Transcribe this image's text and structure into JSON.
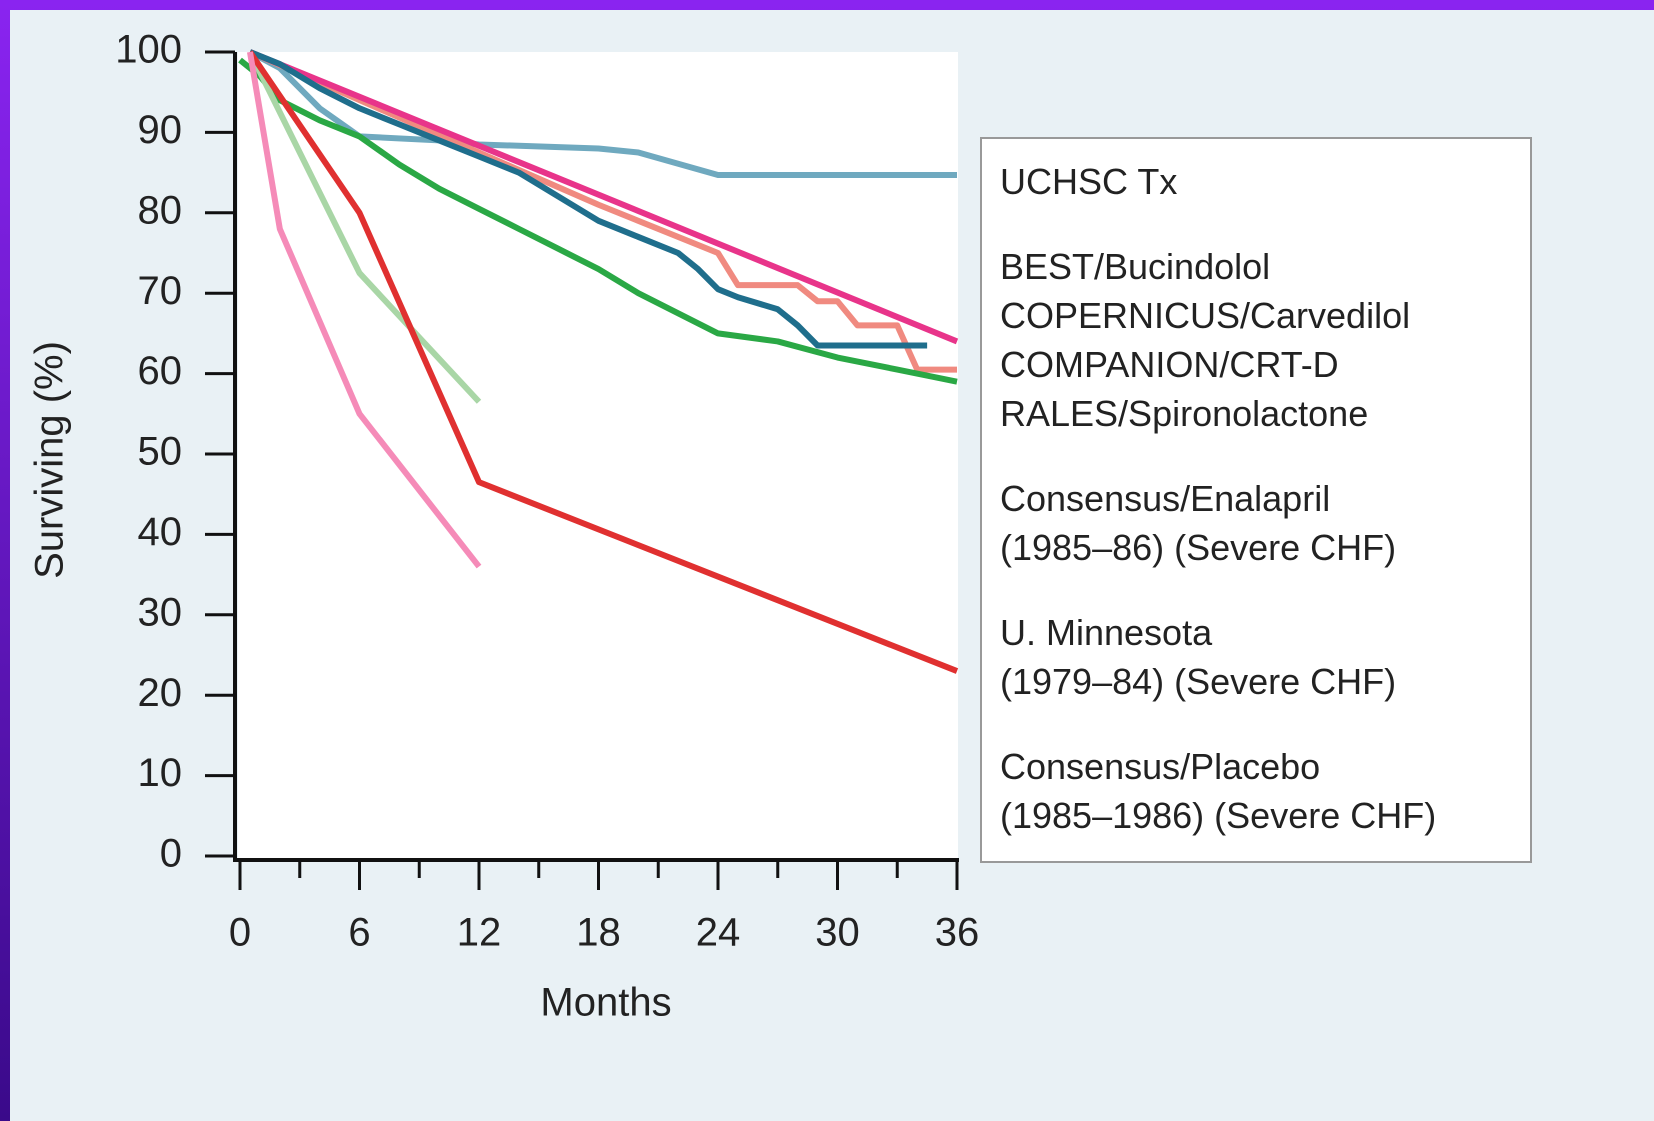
{
  "chart_data": {
    "type": "line",
    "xlabel": "Months",
    "ylabel": "Surviving (%)",
    "xlim": [
      0,
      36
    ],
    "ylim": [
      0,
      100
    ],
    "xticks": [
      0,
      6,
      12,
      18,
      24,
      30,
      36
    ],
    "x_minor_ticks": [
      3,
      9,
      15,
      21,
      27,
      33
    ],
    "yticks": [
      0,
      10,
      20,
      30,
      40,
      50,
      60,
      70,
      80,
      90,
      100
    ],
    "grid": false,
    "legend": "right",
    "series": [
      {
        "name": "UCHSC Tx",
        "color": "#6fa9bf",
        "x": [
          0.5,
          2,
          4,
          6,
          10,
          12,
          18,
          20,
          24,
          36
        ],
        "values": [
          100,
          98,
          93,
          89.5,
          89,
          88.5,
          88,
          87.5,
          84.7,
          84.7
        ]
      },
      {
        "name": "BEST/Bucindolol",
        "color": "#f08a80",
        "x": [
          0.5,
          12,
          18,
          24,
          25,
          28,
          29,
          30,
          31,
          33,
          34,
          36
        ],
        "values": [
          100,
          87.5,
          81,
          75,
          71,
          71,
          69,
          69,
          66,
          66,
          60.5,
          60.5
        ]
      },
      {
        "name": "COPERNICUS/Carvedilol",
        "color": "#e8348a",
        "x": [
          0.5,
          36
        ],
        "values": [
          100,
          64
        ]
      },
      {
        "name": "COMPANION/CRT-D",
        "color": "#1f6e8c",
        "x": [
          0.5,
          2,
          4,
          6,
          8,
          10,
          12,
          14,
          16,
          18,
          20,
          22,
          23,
          24,
          25,
          27,
          28,
          29,
          30,
          34.5
        ],
        "values": [
          100,
          98.5,
          95.5,
          93,
          91,
          89,
          87,
          85,
          82,
          79,
          77,
          75,
          73,
          70.5,
          69.5,
          68,
          66,
          63.5,
          63.5,
          63.5
        ]
      },
      {
        "name": "RALES/Spironolactone",
        "color": "#2aa845",
        "x": [
          0,
          1,
          2,
          4,
          6,
          8,
          10,
          12,
          14,
          16,
          18,
          20,
          22,
          24,
          27,
          30,
          33,
          36
        ],
        "values": [
          99,
          97,
          94,
          91.5,
          89.5,
          86,
          83,
          80.5,
          78,
          75.5,
          73,
          70,
          67.5,
          65,
          64,
          62,
          60.5,
          59
        ]
      },
      {
        "name": "Consensus/Enalapril\n(1985–86) (Severe CHF)",
        "color": "#a9d6a6",
        "x": [
          0.5,
          6,
          12
        ],
        "values": [
          100,
          72.5,
          56.5
        ]
      },
      {
        "name": "U. Minnesota\n(1979–84) (Severe CHF)",
        "color": "#e03030",
        "x": [
          0.5,
          6,
          12,
          36
        ],
        "values": [
          100,
          80,
          46.5,
          23
        ]
      },
      {
        "name": "Consensus/Placebo\n(1985–1986) (Severe CHF)",
        "color": "#f58bb8",
        "x": [
          0.5,
          2,
          6,
          12
        ],
        "values": [
          100,
          78,
          55,
          36
        ]
      }
    ]
  }
}
